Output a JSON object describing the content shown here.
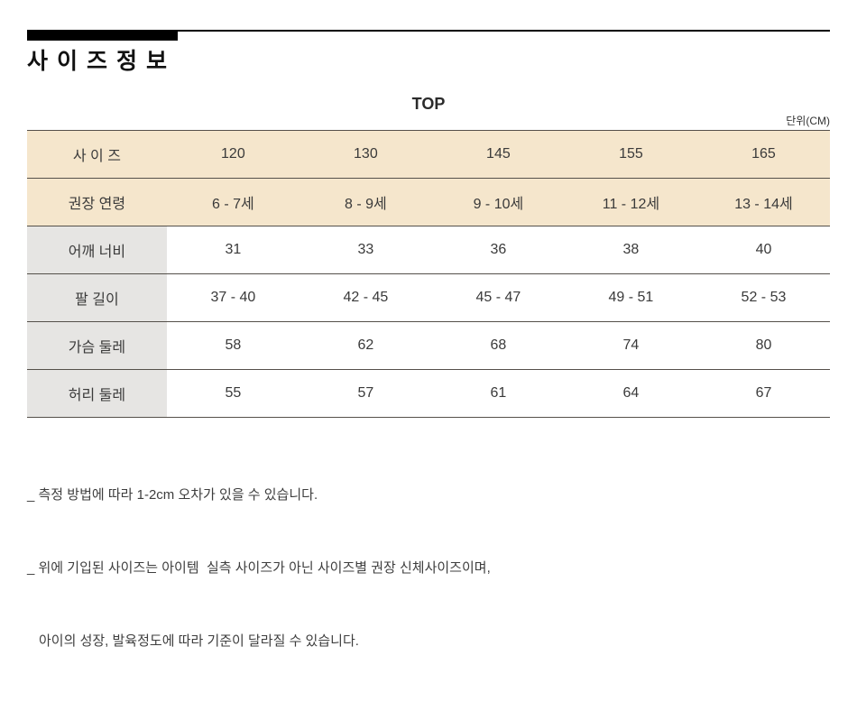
{
  "header": {
    "title": "사이즈정보",
    "section": "TOP",
    "unit": "단위(CM)"
  },
  "table": {
    "rows": [
      {
        "kind": "header",
        "label": "사 이 즈",
        "values": [
          "120",
          "130",
          "145",
          "155",
          "165"
        ]
      },
      {
        "kind": "header",
        "label": "권장 연령",
        "values": [
          "6 - 7세",
          "8 - 9세",
          "9 - 10세",
          "11 - 12세",
          "13 - 14세"
        ]
      },
      {
        "kind": "body",
        "label": "어깨 너비",
        "values": [
          "31",
          "33",
          "36",
          "38",
          "40"
        ]
      },
      {
        "kind": "body",
        "label": "팔 길이",
        "values": [
          "37 - 40",
          "42 - 45",
          "45 - 47",
          "49 - 51",
          "52 - 53"
        ]
      },
      {
        "kind": "body",
        "label": "가슴 둘레",
        "values": [
          "58",
          "62",
          "68",
          "74",
          "80"
        ]
      },
      {
        "kind": "body",
        "label": "허리 둘레",
        "values": [
          "55",
          "57",
          "61",
          "64",
          "67"
        ]
      }
    ]
  },
  "notes": [
    "_ 측정 방법에 따라 1-2cm 오차가 있을 수 있습니다.",
    "_ 위에 기입된 사이즈는 아이템  실측 사이즈가 아닌 사이즈별 권장 신체사이즈이며,",
    "아이의 성장, 발육정도에 따라 기준이 달라질 수 있습니다."
  ],
  "colors": {
    "header_row_bg": "#f5e6cc",
    "label_col_bg": "#e6e5e3",
    "row_border": "#55504a",
    "accent_bar": "#000000",
    "text": "#3a3a3a"
  }
}
